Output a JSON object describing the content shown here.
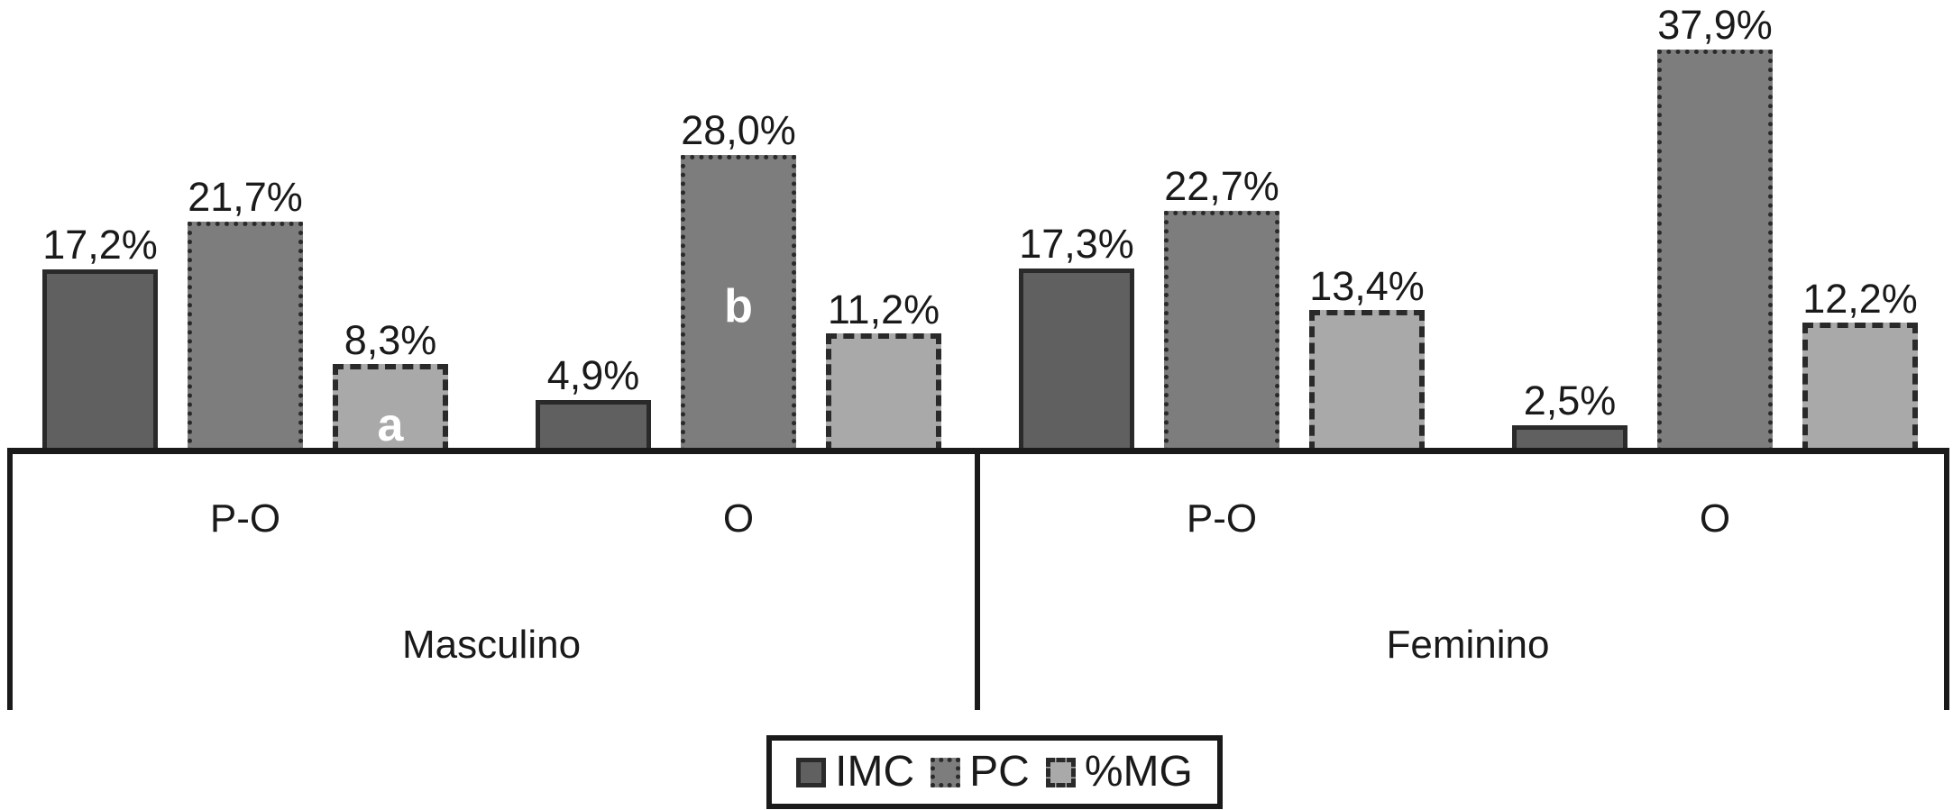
{
  "chart_data": {
    "type": "bar",
    "title": "",
    "value_unit": "%",
    "decimal_separator": ",",
    "grid": false,
    "y_axis_shown": false,
    "ylim": [
      0,
      40
    ],
    "axis_color": "#1a1a1a",
    "bar_border_color": "#2a2a2a",
    "label_color": "#1a1a1a",
    "annotation_color": "#ffffff",
    "series": [
      {
        "name": "IMC",
        "fill": "#606060",
        "border_style": "solid"
      },
      {
        "name": "PC",
        "fill": "#7d7d7d",
        "border_style": "dotted"
      },
      {
        "name": "%MG",
        "fill": "#a9a9a9",
        "border_style": "dashed"
      }
    ],
    "groups": [
      {
        "label": "Masculino",
        "subgroups": [
          {
            "label": "P-O",
            "bars": [
              {
                "series": "IMC",
                "value": 17.2,
                "display": "17,2%"
              },
              {
                "series": "PC",
                "value": 21.7,
                "display": "21,7%"
              },
              {
                "series": "%MG",
                "value": 8.3,
                "display": "8,3%",
                "annotation": {
                  "text": "a",
                  "position": "bottom"
                }
              }
            ]
          },
          {
            "label": "O",
            "bars": [
              {
                "series": "IMC",
                "value": 4.9,
                "display": "4,9%"
              },
              {
                "series": "PC",
                "value": 28.0,
                "display": "28,0%",
                "annotation": {
                  "text": "b",
                  "position": "middle"
                }
              },
              {
                "series": "%MG",
                "value": 11.2,
                "display": "11,2%"
              }
            ]
          }
        ]
      },
      {
        "label": "Feminino",
        "subgroups": [
          {
            "label": "P-O",
            "bars": [
              {
                "series": "IMC",
                "value": 17.3,
                "display": "17,3%"
              },
              {
                "series": "PC",
                "value": 22.7,
                "display": "22,7%"
              },
              {
                "series": "%MG",
                "value": 13.4,
                "display": "13,4%"
              }
            ]
          },
          {
            "label": "O",
            "bars": [
              {
                "series": "IMC",
                "value": 2.5,
                "display": "2,5%"
              },
              {
                "series": "PC",
                "value": 37.9,
                "display": "37,9%"
              },
              {
                "series": "%MG",
                "value": 12.2,
                "display": "12,2%"
              }
            ]
          }
        ]
      }
    ],
    "legend": {
      "position": "bottom",
      "items": [
        "IMC",
        "PC",
        "%MG"
      ]
    }
  }
}
